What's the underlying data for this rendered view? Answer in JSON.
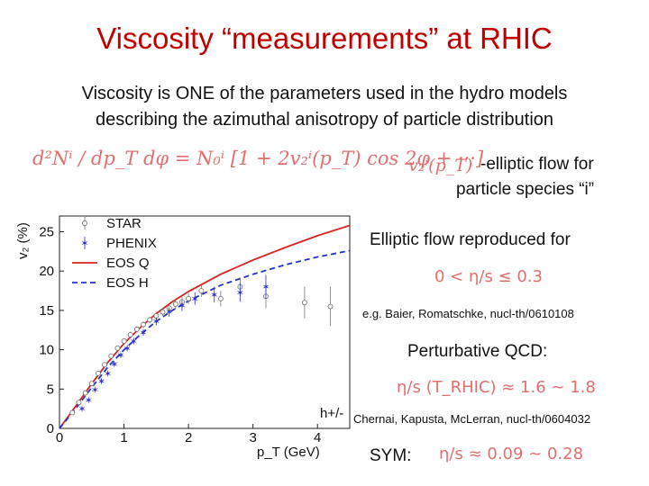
{
  "slide": {
    "title": "Viscosity “measurements” at RHIC",
    "subtitle_line1": "Viscosity is ONE of the parameters used in the hydro models",
    "subtitle_line2": "describing the azimuthal anisotropy of particle distribution",
    "equation_main": "d²Nⁱ / dp_T dφ = N₀ⁱ [1 + 2v₂ⁱ(p_T) cos 2φ + ···]",
    "equation_v2": "v₂ⁱ(p_T)",
    "elliptic_line1": "-elliptic flow for",
    "elliptic_line2": "particle species “i”",
    "reproduced": "Elliptic flow reproduced for",
    "formula_eta_s_range": "0 < η/s ≤ 0.3",
    "ref1": "e.g. Baier, Romatschke, nucl-th/0610108",
    "perturbative": "Perturbative QCD:",
    "formula_qcd": "η/s (T_RHIC) ≈ 1.6 ∼ 1.8",
    "ref2": "Chernai, Kapusta, McLerran, nucl-th/0604032",
    "sym_label": "SYM:",
    "formula_sym": "η/s ≈ 0.09 ∼ 0.28"
  },
  "chart_data": {
    "type": "scatter",
    "xlabel": "p_T (GeV)",
    "ylabel": "v₂ (%)",
    "xlim": [
      0,
      4.5
    ],
    "ylim": [
      0,
      27
    ],
    "xticks": [
      0,
      1,
      2,
      3,
      4
    ],
    "yticks": [
      0,
      5,
      10,
      15,
      20,
      25
    ],
    "annotation": "h+/-",
    "legend_position": "top-left",
    "colors": {
      "star": "#777777",
      "phenix": "#3333cc",
      "eos_q": "#dd2222",
      "eos_h": "#2233cc"
    },
    "series": [
      {
        "name": "STAR",
        "kind": "points",
        "marker": "open-circle",
        "x": [
          0.2,
          0.3,
          0.4,
          0.5,
          0.6,
          0.7,
          0.8,
          0.9,
          1.0,
          1.1,
          1.2,
          1.3,
          1.4,
          1.5,
          1.6,
          1.7,
          1.8,
          1.9,
          2.0,
          2.2,
          2.5,
          2.8,
          3.2,
          3.8,
          4.2
        ],
        "y": [
          2.0,
          3.3,
          4.5,
          5.7,
          7.0,
          8.1,
          9.2,
          10.2,
          11.1,
          11.9,
          12.6,
          13.2,
          13.8,
          14.3,
          14.8,
          15.3,
          15.8,
          16.1,
          16.5,
          17.5,
          16.5,
          18.0,
          16.8,
          16.0,
          15.5
        ],
        "err": [
          0.2,
          0.2,
          0.2,
          0.3,
          0.3,
          0.3,
          0.3,
          0.3,
          0.3,
          0.4,
          0.4,
          0.4,
          0.4,
          0.5,
          0.5,
          0.5,
          0.6,
          0.6,
          0.7,
          0.8,
          1.0,
          1.2,
          1.5,
          2.0,
          2.5
        ]
      },
      {
        "name": "PHENIX",
        "kind": "points",
        "marker": "star",
        "x": [
          0.35,
          0.45,
          0.55,
          0.65,
          0.75,
          0.85,
          0.95,
          1.05,
          1.15,
          1.3,
          1.5,
          1.7,
          1.9,
          2.1,
          2.4,
          2.8,
          3.2
        ],
        "y": [
          2.5,
          3.6,
          4.9,
          6.0,
          7.0,
          8.2,
          9.3,
          10.2,
          11.1,
          12.2,
          13.6,
          14.8,
          15.6,
          16.5,
          17.0,
          17.3,
          18.0
        ],
        "err": [
          0.2,
          0.2,
          0.2,
          0.3,
          0.3,
          0.3,
          0.3,
          0.4,
          0.4,
          0.4,
          0.5,
          0.6,
          0.7,
          0.8,
          1.0,
          1.2,
          1.5
        ]
      },
      {
        "name": "EOS Q",
        "kind": "line",
        "style": "solid",
        "x": [
          0,
          0.25,
          0.5,
          0.75,
          1.0,
          1.25,
          1.5,
          1.75,
          2.0,
          2.5,
          3.0,
          3.5,
          4.0,
          4.5
        ],
        "y": [
          0,
          2.8,
          5.7,
          8.4,
          10.8,
          12.8,
          14.6,
          16.1,
          17.4,
          19.6,
          21.4,
          23.0,
          24.5,
          25.8
        ]
      },
      {
        "name": "EOS H",
        "kind": "line",
        "style": "dashed",
        "x": [
          0,
          0.25,
          0.5,
          0.75,
          1.0,
          1.25,
          1.5,
          1.75,
          2.0,
          2.5,
          3.0,
          3.5,
          4.0,
          4.5
        ],
        "y": [
          0,
          2.5,
          5.2,
          7.8,
          10.0,
          11.9,
          13.6,
          15.0,
          16.2,
          18.2,
          19.6,
          20.8,
          21.8,
          22.6
        ]
      }
    ]
  }
}
